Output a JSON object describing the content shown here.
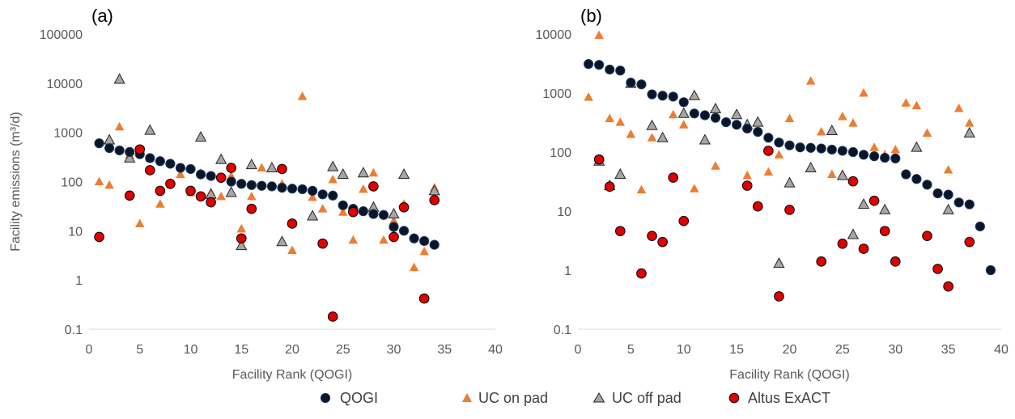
{
  "colors": {
    "QOGI": "#0a1628",
    "UC on pad": "#ed7d31",
    "UC off pad": "#a6a6a6",
    "Altus ExACT": "#e00000",
    "axis": "#d9d9d9",
    "text": "#595959"
  },
  "legend": [
    {
      "name": "QOGI",
      "marker": "circle"
    },
    {
      "name": "UC on pad",
      "marker": "triangle"
    },
    {
      "name": "UC off pad",
      "marker": "triangle"
    },
    {
      "name": "Altus ExACT",
      "marker": "circle"
    }
  ],
  "chart_data": [
    {
      "type": "scatter",
      "panel_label": "(a)",
      "xlabel": "Facility Rank (QOGI)",
      "ylabel": "Facility emissions (m³/d)",
      "xlim": [
        0,
        40
      ],
      "ylim": [
        0.1,
        100000
      ],
      "yscale": "log",
      "x_ticks": [
        0,
        5,
        10,
        15,
        20,
        25,
        30,
        35,
        40
      ],
      "y_ticks": [
        {
          "v": 0.1,
          "label": "0.1"
        },
        {
          "v": 1,
          "label": "1"
        },
        {
          "v": 10,
          "label": "10"
        },
        {
          "v": 100,
          "label": "100"
        },
        {
          "v": 1000,
          "label": "1000"
        },
        {
          "v": 10000,
          "label": "10000"
        },
        {
          "v": 100000,
          "label": "100000"
        }
      ],
      "grid": false,
      "series": [
        {
          "name": "QOGI",
          "points": [
            [
              1,
              600
            ],
            [
              2,
              480
            ],
            [
              3,
              430
            ],
            [
              4,
              400
            ],
            [
              5,
              360
            ],
            [
              6,
              300
            ],
            [
              7,
              260
            ],
            [
              8,
              230
            ],
            [
              9,
              190
            ],
            [
              10,
              180
            ],
            [
              11,
              140
            ],
            [
              12,
              130
            ],
            [
              13,
              120
            ],
            [
              14,
              100
            ],
            [
              15,
              90
            ],
            [
              16,
              85
            ],
            [
              17,
              82
            ],
            [
              18,
              80
            ],
            [
              19,
              75
            ],
            [
              20,
              72
            ],
            [
              21,
              70
            ],
            [
              22,
              65
            ],
            [
              23,
              55
            ],
            [
              24,
              52
            ],
            [
              25,
              33
            ],
            [
              26,
              28
            ],
            [
              27,
              25
            ],
            [
              28,
              22
            ],
            [
              29,
              21
            ],
            [
              30,
              12
            ],
            [
              31,
              10
            ],
            [
              32,
              7
            ],
            [
              33,
              6.2
            ],
            [
              34,
              5.2
            ]
          ]
        },
        {
          "name": "UC on pad",
          "points": [
            [
              1,
              100
            ],
            [
              2,
              85
            ],
            [
              3,
              1300
            ],
            [
              4,
              350
            ],
            [
              5,
              14
            ],
            [
              6,
              300
            ],
            [
              7,
              35
            ],
            [
              8,
              95
            ],
            [
              9,
              140
            ],
            [
              10,
              60
            ],
            [
              11,
              150
            ],
            [
              12,
              60
            ],
            [
              13,
              50
            ],
            [
              14,
              130
            ],
            [
              15,
              11
            ],
            [
              16,
              50
            ],
            [
              17,
              190
            ],
            [
              19,
              90
            ],
            [
              20,
              4
            ],
            [
              21,
              5400
            ],
            [
              22,
              48
            ],
            [
              23,
              28
            ],
            [
              24,
              110
            ],
            [
              25,
              24
            ],
            [
              26,
              6.5
            ],
            [
              27,
              70
            ],
            [
              28,
              150
            ],
            [
              29,
              6.5
            ],
            [
              30,
              16
            ],
            [
              31,
              35
            ],
            [
              32,
              1.8
            ],
            [
              33,
              3.8
            ],
            [
              34,
              75
            ]
          ]
        },
        {
          "name": "UC off pad",
          "points": [
            [
              2,
              700
            ],
            [
              3,
              12000
            ],
            [
              4,
              300
            ],
            [
              6,
              1100
            ],
            [
              11,
              800
            ],
            [
              12,
              55
            ],
            [
              13,
              280
            ],
            [
              14,
              60
            ],
            [
              15,
              5
            ],
            [
              16,
              220
            ],
            [
              18,
              190
            ],
            [
              19,
              6
            ],
            [
              22,
              20
            ],
            [
              24,
              200
            ],
            [
              25,
              140
            ],
            [
              27,
              150
            ],
            [
              28,
              30
            ],
            [
              30,
              22
            ],
            [
              31,
              140
            ],
            [
              34,
              65
            ]
          ]
        },
        {
          "name": "Altus ExACT",
          "points": [
            [
              1,
              7.5
            ],
            [
              4,
              52
            ],
            [
              5,
              450
            ],
            [
              6,
              170
            ],
            [
              7,
              65
            ],
            [
              8,
              90
            ],
            [
              10,
              65
            ],
            [
              11,
              50
            ],
            [
              12,
              38
            ],
            [
              13,
              120
            ],
            [
              14,
              190
            ],
            [
              15,
              7
            ],
            [
              16,
              28
            ],
            [
              19,
              180
            ],
            [
              20,
              14
            ],
            [
              23,
              5.5
            ],
            [
              24,
              0.18
            ],
            [
              26,
              24
            ],
            [
              28,
              80
            ],
            [
              30,
              7.5
            ],
            [
              31,
              30
            ],
            [
              33,
              0.42
            ],
            [
              34,
              42
            ]
          ]
        }
      ]
    },
    {
      "type": "scatter",
      "panel_label": "(b)",
      "xlabel": "Facility Rank (QOGI)",
      "ylabel": "",
      "xlim": [
        0,
        40
      ],
      "ylim": [
        0.1,
        10000
      ],
      "yscale": "log",
      "x_ticks": [
        0,
        5,
        10,
        15,
        20,
        25,
        30,
        35,
        40
      ],
      "y_ticks": [
        {
          "v": 0.1,
          "label": "0.1"
        },
        {
          "v": 1,
          "label": "1"
        },
        {
          "v": 10,
          "label": "10"
        },
        {
          "v": 100,
          "label": "100"
        },
        {
          "v": 1000,
          "label": "1000"
        },
        {
          "v": 10000,
          "label": "10000"
        }
      ],
      "grid": false,
      "series": [
        {
          "name": "QOGI",
          "points": [
            [
              1,
              3100
            ],
            [
              2,
              3000
            ],
            [
              3,
              2500
            ],
            [
              4,
              2400
            ],
            [
              5,
              1500
            ],
            [
              6,
              1400
            ],
            [
              7,
              950
            ],
            [
              8,
              900
            ],
            [
              9,
              870
            ],
            [
              10,
              700
            ],
            [
              11,
              450
            ],
            [
              12,
              420
            ],
            [
              13,
              380
            ],
            [
              14,
              320
            ],
            [
              15,
              290
            ],
            [
              16,
              250
            ],
            [
              17,
              220
            ],
            [
              18,
              175
            ],
            [
              19,
              145
            ],
            [
              20,
              130
            ],
            [
              21,
              120
            ],
            [
              22,
              118
            ],
            [
              23,
              115
            ],
            [
              24,
              110
            ],
            [
              25,
              105
            ],
            [
              26,
              100
            ],
            [
              27,
              90
            ],
            [
              28,
              85
            ],
            [
              29,
              80
            ],
            [
              30,
              78
            ],
            [
              31,
              42
            ],
            [
              32,
              35
            ],
            [
              33,
              28
            ],
            [
              34,
              20
            ],
            [
              35,
              19
            ],
            [
              36,
              14
            ],
            [
              37,
              13
            ],
            [
              38,
              5.5
            ],
            [
              39,
              1
            ]
          ]
        },
        {
          "name": "UC on pad",
          "points": [
            [
              1,
              850
            ],
            [
              2,
              9500
            ],
            [
              3,
              370
            ],
            [
              4,
              320
            ],
            [
              5,
              200
            ],
            [
              6,
              23
            ],
            [
              7,
              175
            ],
            [
              9,
              430
            ],
            [
              10,
              290
            ],
            [
              11,
              24
            ],
            [
              12,
              430
            ],
            [
              13,
              58
            ],
            [
              16,
              40
            ],
            [
              18,
              46
            ],
            [
              19,
              90
            ],
            [
              20,
              370
            ],
            [
              22,
              1600
            ],
            [
              23,
              220
            ],
            [
              24,
              42
            ],
            [
              25,
              400
            ],
            [
              26,
              310
            ],
            [
              27,
              1000
            ],
            [
              28,
              120
            ],
            [
              29,
              90
            ],
            [
              30,
              110
            ],
            [
              31,
              680
            ],
            [
              32,
              610
            ],
            [
              33,
              210
            ],
            [
              35,
              50
            ],
            [
              36,
              550
            ],
            [
              37,
              310
            ]
          ]
        },
        {
          "name": "UC off pad",
          "points": [
            [
              2,
              70
            ],
            [
              3,
              27
            ],
            [
              4,
              42
            ],
            [
              5,
              1450
            ],
            [
              7,
              280
            ],
            [
              8,
              175
            ],
            [
              10,
              450
            ],
            [
              11,
              900
            ],
            [
              12,
              160
            ],
            [
              13,
              540
            ],
            [
              15,
              430
            ],
            [
              16,
              290
            ],
            [
              17,
              320
            ],
            [
              19,
              1.3
            ],
            [
              20,
              30
            ],
            [
              22,
              54
            ],
            [
              24,
              230
            ],
            [
              25,
              40
            ],
            [
              26,
              4
            ],
            [
              27,
              13
            ],
            [
              29,
              10.5
            ],
            [
              32,
              120
            ],
            [
              35,
              10.5
            ],
            [
              37,
              210
            ]
          ]
        },
        {
          "name": "Altus ExACT",
          "points": [
            [
              2,
              75
            ],
            [
              3,
              26
            ],
            [
              4,
              4.6
            ],
            [
              6,
              0.88
            ],
            [
              7,
              3.8
            ],
            [
              8,
              3
            ],
            [
              9,
              37
            ],
            [
              10,
              6.8
            ],
            [
              16,
              27
            ],
            [
              17,
              12
            ],
            [
              18,
              105
            ],
            [
              19,
              0.36
            ],
            [
              20,
              10.5
            ],
            [
              23,
              1.4
            ],
            [
              25,
              2.8
            ],
            [
              26,
              32
            ],
            [
              27,
              2.3
            ],
            [
              28,
              15
            ],
            [
              29,
              4.6
            ],
            [
              30,
              1.4
            ],
            [
              33,
              3.8
            ],
            [
              34,
              1.05
            ],
            [
              35,
              0.53
            ],
            [
              37,
              3
            ]
          ]
        }
      ]
    }
  ]
}
